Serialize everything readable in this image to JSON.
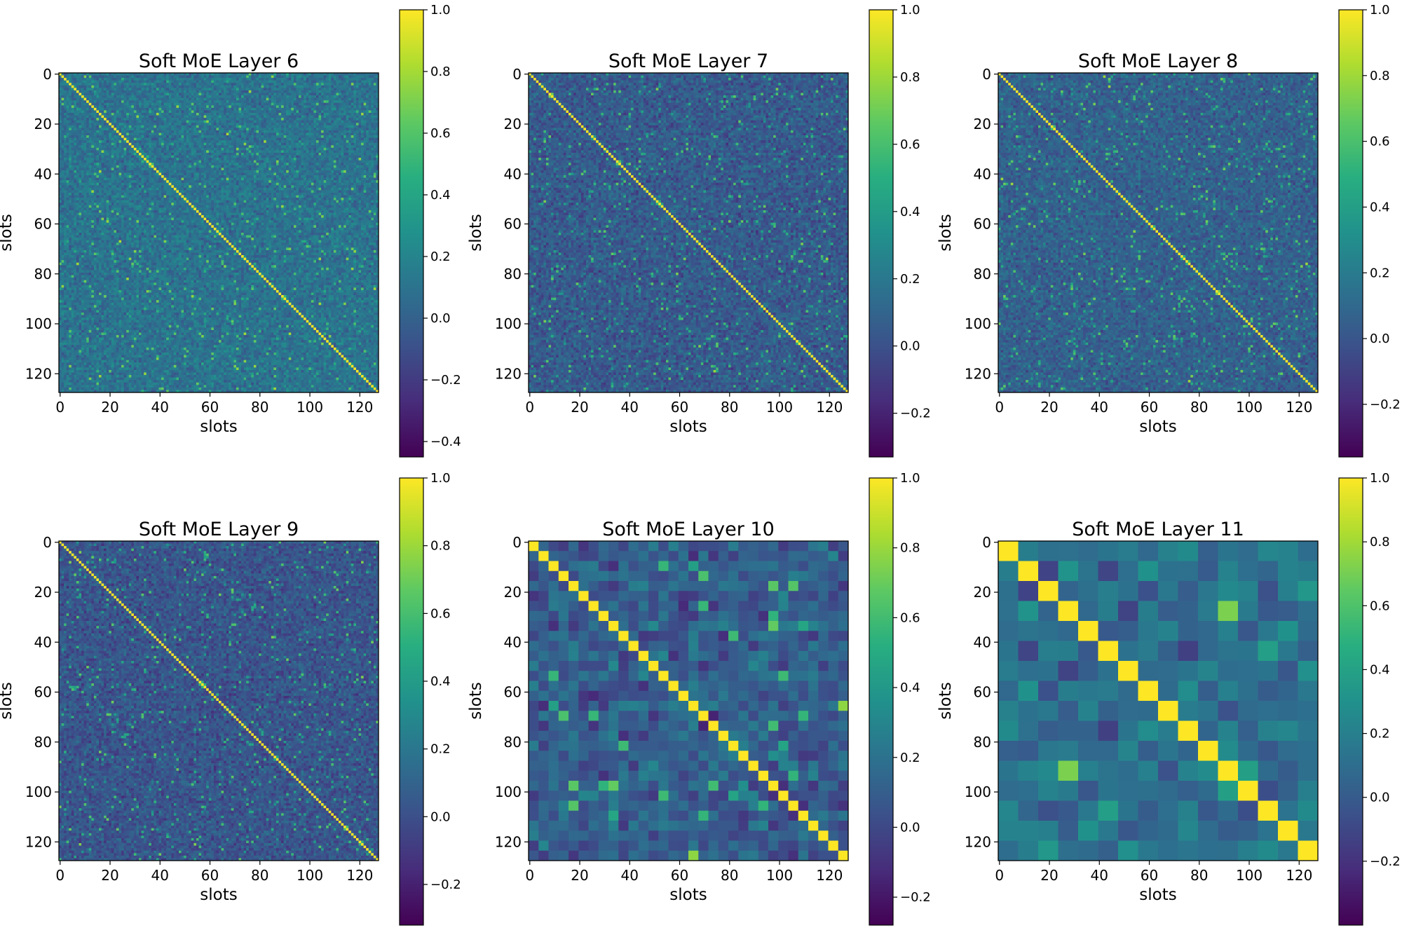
{
  "chart_data": [
    {
      "type": "heatmap",
      "title": "Soft MoE Layer 6",
      "xlabel": "slots",
      "ylabel": "slots",
      "size": 128,
      "xlim": [
        0,
        128
      ],
      "ylim": [
        128,
        0
      ],
      "xticks": [
        0,
        20,
        40,
        60,
        80,
        100,
        120
      ],
      "yticks": [
        0,
        20,
        40,
        60,
        80,
        100,
        120
      ],
      "block_size": 1,
      "colorbar": {
        "min": -0.45,
        "max": 1.0,
        "ticks": [
          -0.4,
          -0.2,
          0.0,
          0.2,
          0.4,
          0.6,
          0.8,
          1.0
        ],
        "tick_labels": [
          "−0.4",
          "−0.2",
          "0.0",
          "0.2",
          "0.4",
          "0.6",
          "0.8",
          "1.0"
        ]
      },
      "values_summary": {
        "diagonal": 1.0,
        "off_diagonal_mean": 0.1,
        "off_diagonal_spread": 0.14
      },
      "grid": false
    },
    {
      "type": "heatmap",
      "title": "Soft MoE Layer 7",
      "xlabel": "slots",
      "ylabel": "slots",
      "size": 128,
      "xlim": [
        0,
        128
      ],
      "ylim": [
        128,
        0
      ],
      "xticks": [
        0,
        20,
        40,
        60,
        80,
        100,
        120
      ],
      "yticks": [
        0,
        20,
        40,
        60,
        80,
        100,
        120
      ],
      "block_size": 1,
      "colorbar": {
        "min": -0.33,
        "max": 1.0,
        "ticks": [
          -0.2,
          0.0,
          0.2,
          0.4,
          0.6,
          0.8,
          1.0
        ],
        "tick_labels": [
          "−0.2",
          "0.0",
          "0.2",
          "0.4",
          "0.6",
          "0.8",
          "1.0"
        ]
      },
      "values_summary": {
        "diagonal": 1.0,
        "off_diagonal_mean": 0.05,
        "off_diagonal_spread": 0.14
      },
      "grid": false
    },
    {
      "type": "heatmap",
      "title": "Soft MoE Layer 8",
      "xlabel": "slots",
      "ylabel": "slots",
      "size": 128,
      "xlim": [
        0,
        128
      ],
      "ylim": [
        128,
        0
      ],
      "xticks": [
        0,
        20,
        40,
        60,
        80,
        100,
        120
      ],
      "yticks": [
        0,
        20,
        40,
        60,
        80,
        100,
        120
      ],
      "block_size": 1,
      "colorbar": {
        "min": -0.36,
        "max": 1.0,
        "ticks": [
          -0.2,
          0.0,
          0.2,
          0.4,
          0.6,
          0.8,
          1.0
        ],
        "tick_labels": [
          "−0.2",
          "0.0",
          "0.2",
          "0.4",
          "0.6",
          "0.8",
          "1.0"
        ]
      },
      "values_summary": {
        "diagonal": 1.0,
        "off_diagonal_mean": 0.06,
        "off_diagonal_spread": 0.13
      },
      "grid": false
    },
    {
      "type": "heatmap",
      "title": "Soft MoE Layer 9",
      "xlabel": "slots",
      "ylabel": "slots",
      "size": 128,
      "xlim": [
        0,
        128
      ],
      "ylim": [
        128,
        0
      ],
      "xticks": [
        0,
        20,
        40,
        60,
        80,
        100,
        120
      ],
      "yticks": [
        0,
        20,
        40,
        60,
        80,
        100,
        120
      ],
      "block_size": 1,
      "colorbar": {
        "min": -0.32,
        "max": 1.0,
        "ticks": [
          -0.2,
          0.0,
          0.2,
          0.4,
          0.6,
          0.8,
          1.0
        ],
        "tick_labels": [
          "−0.2",
          "0.0",
          "0.2",
          "0.4",
          "0.6",
          "0.8",
          "1.0"
        ]
      },
      "values_summary": {
        "diagonal": 1.0,
        "off_diagonal_mean": 0.03,
        "off_diagonal_spread": 0.13
      },
      "grid": false
    },
    {
      "type": "heatmap",
      "title": "Soft MoE Layer 10",
      "xlabel": "slots",
      "ylabel": "slots",
      "size": 128,
      "xlim": [
        0,
        128
      ],
      "ylim": [
        128,
        0
      ],
      "xticks": [
        0,
        20,
        40,
        60,
        80,
        100,
        120
      ],
      "yticks": [
        0,
        20,
        40,
        60,
        80,
        100,
        120
      ],
      "block_size": 4,
      "colorbar": {
        "min": -0.28,
        "max": 1.0,
        "ticks": [
          -0.2,
          0.0,
          0.2,
          0.4,
          0.6,
          0.8,
          1.0
        ],
        "tick_labels": [
          "−0.2",
          "0.0",
          "0.2",
          "0.4",
          "0.6",
          "0.8",
          "1.0"
        ]
      },
      "values_summary": {
        "diagonal": 1.0,
        "off_diagonal_mean": 0.1,
        "off_diagonal_spread": 0.17
      },
      "grid": false
    },
    {
      "type": "heatmap",
      "title": "Soft MoE Layer 11",
      "xlabel": "slots",
      "ylabel": "slots",
      "size": 128,
      "xlim": [
        0,
        128
      ],
      "ylim": [
        128,
        0
      ],
      "xticks": [
        0,
        20,
        40,
        60,
        80,
        100,
        120
      ],
      "yticks": [
        0,
        20,
        40,
        60,
        80,
        100,
        120
      ],
      "block_size": 8,
      "colorbar": {
        "min": -0.4,
        "max": 1.0,
        "ticks": [
          -0.2,
          0.0,
          0.2,
          0.4,
          0.6,
          0.8,
          1.0
        ],
        "tick_labels": [
          "−0.2",
          "0.0",
          "0.2",
          "0.4",
          "0.6",
          "0.8",
          "1.0"
        ]
      },
      "values_summary": {
        "diagonal": 1.0,
        "off_diagonal_mean": 0.12,
        "off_diagonal_spread": 0.2
      },
      "grid": false
    }
  ]
}
